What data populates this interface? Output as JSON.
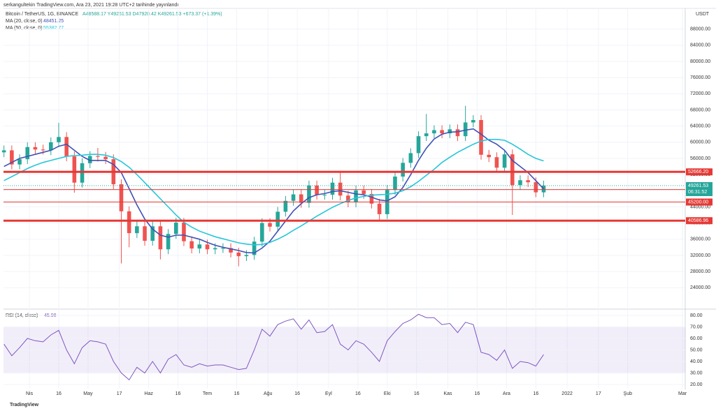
{
  "header": {
    "published": "serkangultekin TradingView.com, Ara 23, 2021 19:28 UTC+2 tarihinde yayınlandı",
    "ohlc": "A48588.17 Y49261.53 D47920.42 K49261.53 +673.37 (+1.39%)",
    "currency": "USDT",
    "countdown": "06:31:52",
    "logo": "TradingView"
  },
  "chart_data": [
    {
      "type": "candlestick",
      "title": "Bitcoin / TetherUS, 1G, BINANCE",
      "up_color": "#26a69a",
      "down_color": "#ef5350",
      "open": [
        57500,
        58000,
        54500,
        55800,
        58800,
        58200,
        58000,
        60000,
        61300,
        56500,
        50000,
        54800,
        56600,
        56400,
        55800,
        49600,
        42900,
        37500,
        39200,
        35600,
        39200,
        33500,
        37300,
        40100,
        35500,
        33700,
        34700,
        33500,
        33800,
        33800,
        32700,
        31800,
        32100,
        35400,
        40000,
        39100,
        42800,
        45500,
        47100,
        45000,
        49300,
        47000,
        47000,
        50000,
        46800,
        45100,
        48100,
        47200,
        44800,
        42200,
        48200,
        51500,
        54900,
        57300,
        61500,
        62200,
        63000,
        62200,
        63200,
        61500,
        64900,
        65500,
        56900,
        56300,
        53700,
        57000,
        49400,
        50600,
        50100,
        47600
      ],
      "high": [
        59200,
        59200,
        57000,
        60000,
        60000,
        59400,
        61200,
        64800,
        62500,
        57700,
        56000,
        57800,
        58600,
        57600,
        57000,
        50800,
        44100,
        40400,
        40400,
        40400,
        40400,
        38500,
        41300,
        41300,
        36700,
        35900,
        35900,
        35000,
        35000,
        35000,
        33900,
        33300,
        36600,
        41200,
        41200,
        44000,
        46700,
        48300,
        48300,
        50500,
        50500,
        48200,
        51200,
        52900,
        48000,
        49300,
        49300,
        48400,
        46000,
        49400,
        52700,
        56100,
        58500,
        62700,
        67000,
        64200,
        64200,
        64400,
        64400,
        69000,
        66700,
        66700,
        58100,
        57500,
        58200,
        58200,
        51800,
        51800,
        51300,
        50500
      ],
      "low": [
        56300,
        53300,
        53300,
        54600,
        57000,
        57000,
        56800,
        58800,
        55300,
        47500,
        48800,
        53600,
        55200,
        54600,
        48400,
        30000,
        34000,
        36300,
        34400,
        34400,
        31000,
        32300,
        36100,
        34300,
        32500,
        32500,
        32300,
        32300,
        32600,
        31500,
        29300,
        30600,
        30900,
        34200,
        37900,
        37900,
        41600,
        44300,
        43800,
        43800,
        45800,
        45800,
        45800,
        45600,
        43900,
        43900,
        46000,
        43600,
        40600,
        41000,
        47000,
        50300,
        53700,
        56100,
        60300,
        61000,
        61000,
        61000,
        60300,
        60300,
        63700,
        55700,
        55100,
        52500,
        52500,
        42000,
        48200,
        48900,
        46400,
        46400
      ],
      "close": [
        58000,
        54500,
        55800,
        58800,
        58200,
        58000,
        60000,
        61300,
        56500,
        50000,
        54800,
        56600,
        56400,
        55800,
        49600,
        42900,
        37500,
        39200,
        35600,
        39200,
        33500,
        37300,
        40100,
        35500,
        33700,
        34700,
        33500,
        33800,
        33800,
        32700,
        31800,
        32100,
        35400,
        40000,
        39100,
        42800,
        45500,
        47100,
        45000,
        49300,
        47000,
        47000,
        50000,
        46800,
        45100,
        48100,
        47200,
        44800,
        42200,
        48200,
        51500,
        54900,
        57300,
        61500,
        62200,
        63000,
        62200,
        63200,
        61500,
        64900,
        65500,
        56900,
        56300,
        53700,
        57000,
        49400,
        50600,
        50100,
        47600,
        49261.53
      ],
      "series": [
        {
          "name": "MA (20, close, 0)",
          "color": "#3f51b5",
          "values": [
            54000,
            55000,
            56000,
            56500,
            57000,
            57500,
            58000,
            59000,
            59500,
            58000,
            56500,
            55500,
            55500,
            55500,
            54500,
            52500,
            48500,
            44500,
            41000,
            38500,
            37000,
            36500,
            37000,
            37000,
            36500,
            36000,
            35200,
            34500,
            34000,
            33600,
            33200,
            32700,
            32600,
            33800,
            35500,
            38000,
            40500,
            43000,
            44800,
            46300,
            47000,
            47300,
            47800,
            48000,
            47600,
            47200,
            47000,
            46400,
            45700,
            45500,
            46500,
            48800,
            52000,
            55500,
            58500,
            60800,
            62000,
            62500,
            62600,
            63000,
            63300,
            62000,
            60500,
            59500,
            58000,
            55500,
            54000,
            52500,
            50500,
            48451.25
          ]
        },
        {
          "name": "MA (50, close, 0)",
          "color": "#26c6da",
          "values": [
            50500,
            51500,
            52500,
            53500,
            54300,
            55000,
            55500,
            56000,
            56500,
            56700,
            56800,
            57000,
            57000,
            56800,
            56200,
            55200,
            53800,
            52000,
            50000,
            48000,
            46000,
            44000,
            42000,
            40200,
            39000,
            38000,
            37300,
            36600,
            36100,
            35600,
            35100,
            34800,
            34600,
            34700,
            35200,
            36000,
            37000,
            38200,
            39300,
            40500,
            41700,
            42800,
            43900,
            44800,
            45600,
            46200,
            46600,
            46900,
            47000,
            47100,
            47400,
            48000,
            49000,
            50300,
            51800,
            53300,
            55000,
            56300,
            57500,
            58500,
            59500,
            60300,
            60700,
            60700,
            60500,
            59500,
            58300,
            57000,
            56000,
            55382.77
          ]
        }
      ],
      "levels": [
        {
          "value": 52666.2,
          "label": "52666.20",
          "color": "#e53935",
          "width": 3
        },
        {
          "value": 48292.75,
          "color": "#e53935",
          "width": 1
        },
        {
          "value": 45200,
          "label": "45200.00",
          "color": "#e53935",
          "width": 1
        },
        {
          "value": 40586.96,
          "color": "#e53935",
          "width": 3
        }
      ],
      "xlim": [
        -0.06,
        87.1
      ],
      "xticks": [
        {
          "value": 3.25,
          "label": "Nis"
        },
        {
          "value": 7,
          "label": "16"
        },
        {
          "value": 10.75,
          "label": "May"
        },
        {
          "value": 14.75,
          "label": "17"
        },
        {
          "value": 18.5,
          "label": "Haz"
        },
        {
          "value": 22.25,
          "label": "16"
        },
        {
          "value": 26,
          "label": "Tem"
        },
        {
          "value": 29.75,
          "label": "16"
        },
        {
          "value": 33.75,
          "label": "Ağu"
        },
        {
          "value": 37.5,
          "label": "16"
        },
        {
          "value": 41.5,
          "label": "Eyl"
        },
        {
          "value": 45.25,
          "label": "16"
        },
        {
          "value": 49,
          "label": "Eki"
        },
        {
          "value": 52.75,
          "label": "16"
        },
        {
          "value": 56.75,
          "label": "Kas"
        },
        {
          "value": 60.5,
          "label": "16"
        },
        {
          "value": 64.25,
          "label": "Ara"
        },
        {
          "value": 68,
          "label": "16"
        },
        {
          "value": 72,
          "label": "2022"
        },
        {
          "value": 76,
          "label": "17"
        },
        {
          "value": 79.75,
          "label": "Şub"
        },
        {
          "value": 86.75,
          "label": "Mar"
        }
      ],
      "ylim": [
        18695,
        93134
      ],
      "yticks": [
        {
          "value": 24000,
          "label": "24000.00"
        },
        {
          "value": 28000,
          "label": "28000.00"
        },
        {
          "value": 32000,
          "label": "32000.00"
        },
        {
          "value": 36000,
          "label": "36000.00"
        },
        {
          "value": 40000,
          "label": "40000.00"
        },
        {
          "value": 44000,
          "label": "44000.00"
        },
        {
          "value": 48000,
          "label": "48000.00"
        },
        {
          "value": 52000,
          "label": "52000.00"
        },
        {
          "value": 56000,
          "label": "56000.00"
        },
        {
          "value": 60000,
          "label": "60000.00"
        },
        {
          "value": 64000,
          "label": "64000.00"
        },
        {
          "value": 68000,
          "label": "68000.00"
        },
        {
          "value": 72000,
          "label": "72000.00"
        },
        {
          "value": 76000,
          "label": "76000.00"
        },
        {
          "value": 80000,
          "label": "80000.00"
        },
        {
          "value": 84000,
          "label": "84000.00"
        },
        {
          "value": 88000,
          "label": "88000.00"
        }
      ],
      "grid": true
    },
    {
      "type": "line",
      "title": "RSI (14, close)",
      "series": [
        {
          "color": "#7e57c2",
          "values": [
            55,
            45,
            52,
            60,
            58,
            57,
            63,
            67,
            50,
            38,
            52,
            58,
            57,
            55,
            40,
            30,
            24,
            35,
            30,
            40,
            30,
            42,
            46,
            37,
            35,
            38,
            36,
            37,
            37,
            35,
            33,
            34,
            50,
            68,
            62,
            72,
            75,
            77,
            68,
            76,
            65,
            66,
            72,
            55,
            50,
            58,
            55,
            48,
            40,
            58,
            66,
            73,
            76,
            81,
            78,
            78,
            72,
            73,
            65,
            74,
            72,
            48,
            46,
            41,
            50,
            34,
            40,
            39,
            36,
            45.98
          ]
        }
      ],
      "band": [
        30,
        70
      ],
      "xlim": [
        -0.06,
        87.1
      ],
      "ylim": [
        16.4,
        84.2
      ],
      "yticks": [
        {
          "value": 20,
          "label": "20.00"
        },
        {
          "value": 30,
          "label": "30.00"
        },
        {
          "value": 40,
          "label": "40.00"
        },
        {
          "value": 50,
          "label": "50.00"
        },
        {
          "value": 60,
          "label": "60.00"
        },
        {
          "value": 70,
          "label": "70.00"
        },
        {
          "value": 80,
          "label": "80.00"
        }
      ]
    }
  ]
}
